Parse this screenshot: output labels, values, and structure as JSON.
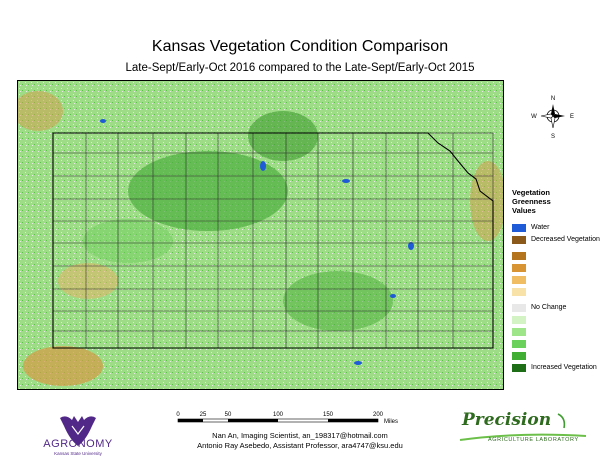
{
  "title": "Kansas Vegetation Condition Comparison",
  "subtitle": "Late-Sept/Early-Oct 2016 compared to the Late-Sept/Early-Oct 2015",
  "compass": {
    "n": "N",
    "s": "S",
    "e": "E",
    "w": "W"
  },
  "legend": {
    "title_line1": "Vegetation",
    "title_line2": "Greenness",
    "title_line3": "Values",
    "items": [
      {
        "label": "Water",
        "color": "#1f5bd6"
      },
      {
        "label": "Decreased Vegetation",
        "color": "#8b5a1b"
      },
      {
        "label": "",
        "color": "#b3741c"
      },
      {
        "label": "",
        "color": "#d89432"
      },
      {
        "label": "",
        "color": "#f0bd63"
      },
      {
        "label": "",
        "color": "#f8e2a8"
      },
      {
        "label": "No Change",
        "color": "#e8e8e8"
      },
      {
        "label": "",
        "color": "#d4f3c4"
      },
      {
        "label": "",
        "color": "#9ee58a"
      },
      {
        "label": "",
        "color": "#6ad25a"
      },
      {
        "label": "",
        "color": "#3fae33"
      },
      {
        "label": "Increased Vegetation",
        "color": "#1d6e16"
      }
    ]
  },
  "scale": {
    "ticks": [
      "0",
      "25",
      "50",
      "100",
      "150",
      "200"
    ],
    "unit": "Miles"
  },
  "credits": {
    "line1": "Nan An, Imaging Scientist, an_198317@hotmail.com",
    "line2": "Antonio Ray Asebedo, Assistant Professor, ara4747@ksu.edu"
  },
  "logos": {
    "agronomy": "AGRONOMY",
    "agronomy_sub": "Kansas State University",
    "precision": "Precision",
    "precision_sub": "AGRICULTURE LABORATORY"
  }
}
